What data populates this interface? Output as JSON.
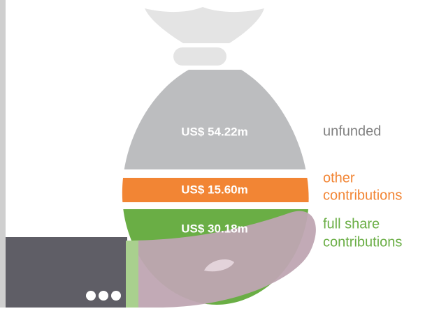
{
  "segments": [
    {
      "amount": "US$ 54.22m",
      "label_lines": [
        "unfunded"
      ]
    },
    {
      "amount": "US$ 15.60m",
      "label_lines": [
        "other",
        "contributions"
      ]
    },
    {
      "amount": "US$ 30.18m",
      "label_lines": [
        "full share",
        "contributions"
      ]
    }
  ]
}
